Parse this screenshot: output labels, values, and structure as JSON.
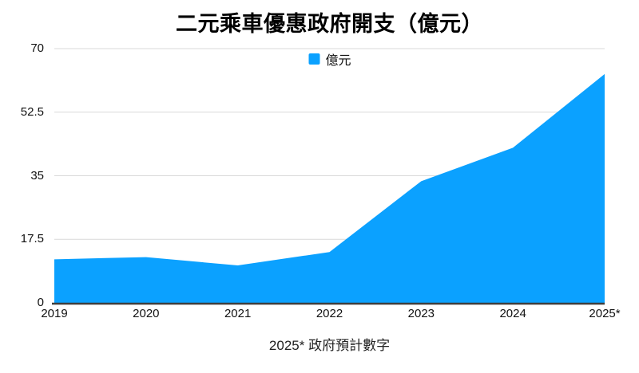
{
  "chart_data": {
    "type": "area",
    "title": "二元乘車優惠政府開支（億元）",
    "legend_label": "億元",
    "legend_position": "top-center",
    "categories": [
      "2019",
      "2020",
      "2021",
      "2022",
      "2023",
      "2024",
      "2025*"
    ],
    "values": [
      12,
      12.6,
      10.3,
      14,
      33.5,
      42.7,
      63
    ],
    "yticks": [
      0,
      17.5,
      35,
      52.5,
      70
    ],
    "ylim": [
      0,
      70
    ],
    "grid": true,
    "xlabel": "",
    "ylabel": "",
    "footnote": "2025* 政府預計數字"
  },
  "colors": {
    "area": "#0BA1FF",
    "gridline": "#d9d9d9",
    "axis": "#3e3e3e",
    "text": "#111111",
    "background": "#ffffff"
  }
}
